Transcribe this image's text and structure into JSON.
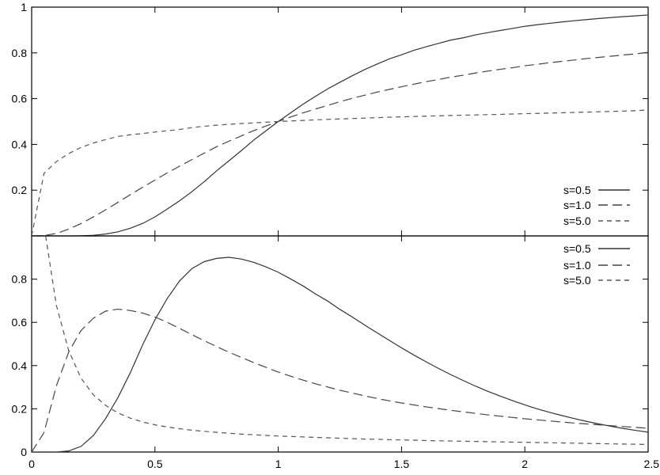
{
  "chart_data": [
    {
      "type": "line",
      "title": "",
      "xlabel": "",
      "ylabel": "",
      "xlim": [
        0,
        2.5
      ],
      "ylim": [
        0,
        1
      ],
      "grid": false,
      "legend_position": "bottom-right",
      "x_ticks": [
        {
          "value": 0,
          "label": "0"
        },
        {
          "value": 0.5,
          "label": "0.5"
        },
        {
          "value": 1,
          "label": "1"
        },
        {
          "value": 1.5,
          "label": "1.5"
        },
        {
          "value": 2,
          "label": "2"
        },
        {
          "value": 2.5,
          "label": "2.5"
        }
      ],
      "y_ticks": [
        {
          "value": 0.2,
          "label": "0.2"
        },
        {
          "value": 0.4,
          "label": "0.4"
        },
        {
          "value": 0.6,
          "label": "0.6"
        },
        {
          "value": 0.8,
          "label": "0.8"
        },
        {
          "value": 1,
          "label": "1"
        }
      ],
      "x": [
        0,
        0.05,
        0.1,
        0.15,
        0.2,
        0.25,
        0.3,
        0.35,
        0.4,
        0.45,
        0.5,
        0.55,
        0.6,
        0.65,
        0.7,
        0.75,
        0.8,
        0.85,
        0.9,
        0.95,
        1.0,
        1.05,
        1.1,
        1.15,
        1.2,
        1.25,
        1.3,
        1.35,
        1.4,
        1.45,
        1.5,
        1.55,
        1.6,
        1.65,
        1.7,
        1.75,
        1.8,
        1.85,
        1.9,
        1.95,
        2.0,
        2.05,
        2.1,
        2.15,
        2.2,
        2.25,
        2.3,
        2.35,
        2.4,
        2.45,
        2.5
      ],
      "series": [
        {
          "name": "s=0.5",
          "style": "solid",
          "color": "#333333",
          "values": [
            0,
            0,
            0,
            0,
            0.0007,
            0.0028,
            0.0082,
            0.0179,
            0.0334,
            0.0546,
            0.0831,
            0.1175,
            0.1537,
            0.1936,
            0.2372,
            0.2844,
            0.3283,
            0.3725,
            0.4185,
            0.4593,
            0.5,
            0.5377,
            0.5754,
            0.6094,
            0.6424,
            0.6715,
            0.7001,
            0.7267,
            0.7505,
            0.7735,
            0.7916,
            0.8114,
            0.8266,
            0.8415,
            0.8559,
            0.8659,
            0.8787,
            0.8887,
            0.898,
            0.9068,
            0.9162,
            0.9229,
            0.9293,
            0.9352,
            0.9406,
            0.9456,
            0.9502,
            0.9545,
            0.9584,
            0.962,
            0.9656
          ]
        },
        {
          "name": "s=1.0",
          "style": "long-dash",
          "color": "#444444",
          "values": [
            0,
            0.0014,
            0.0107,
            0.0294,
            0.0539,
            0.0829,
            0.1141,
            0.1468,
            0.1802,
            0.2128,
            0.2441,
            0.2755,
            0.305,
            0.3335,
            0.3621,
            0.3898,
            0.4139,
            0.437,
            0.46,
            0.4803,
            0.5,
            0.5195,
            0.5377,
            0.5545,
            0.5702,
            0.5868,
            0.6012,
            0.6147,
            0.6283,
            0.6402,
            0.652,
            0.6634,
            0.674,
            0.6838,
            0.6942,
            0.7022,
            0.712,
            0.7204,
            0.7281,
            0.7352,
            0.7438,
            0.7501,
            0.757,
            0.763,
            0.7688,
            0.7753,
            0.7803,
            0.7855,
            0.7909,
            0.7955,
            0.8023
          ]
        },
        {
          "name": "s=5.0",
          "style": "short-dash",
          "color": "#555555",
          "values": [
            0,
            0.273,
            0.3247,
            0.3598,
            0.3867,
            0.4062,
            0.4211,
            0.4346,
            0.442,
            0.4476,
            0.454,
            0.4597,
            0.4652,
            0.4737,
            0.4794,
            0.4839,
            0.4878,
            0.4911,
            0.494,
            0.4971,
            0.5,
            0.5024,
            0.5048,
            0.5071,
            0.5093,
            0.5112,
            0.5131,
            0.5149,
            0.5168,
            0.5188,
            0.5204,
            0.5219,
            0.5234,
            0.5249,
            0.5264,
            0.5276,
            0.5289,
            0.5301,
            0.5314,
            0.5328,
            0.5343,
            0.5355,
            0.5369,
            0.5382,
            0.5397,
            0.5411,
            0.5426,
            0.5441,
            0.5457,
            0.5476,
            0.55
          ]
        }
      ]
    },
    {
      "type": "line",
      "title": "",
      "xlabel": "",
      "ylabel": "",
      "xlim": [
        0,
        2.5
      ],
      "ylim": [
        0,
        1
      ],
      "grid": false,
      "legend_position": "top-right",
      "x_ticks": [
        {
          "value": 0,
          "label": "0"
        },
        {
          "value": 0.5,
          "label": "0.5"
        },
        {
          "value": 1,
          "label": "1"
        },
        {
          "value": 1.5,
          "label": "1.5"
        },
        {
          "value": 2,
          "label": "2"
        },
        {
          "value": 2.5,
          "label": "2.5"
        }
      ],
      "y_ticks": [
        {
          "value": 0,
          "label": "0"
        },
        {
          "value": 0.2,
          "label": "0.2"
        },
        {
          "value": 0.4,
          "label": "0.4"
        },
        {
          "value": 0.6,
          "label": "0.6"
        },
        {
          "value": 0.8,
          "label": "0.8"
        }
      ],
      "x": [
        0,
        0.05,
        0.1,
        0.15,
        0.2,
        0.25,
        0.3,
        0.35,
        0.4,
        0.45,
        0.5,
        0.55,
        0.6,
        0.65,
        0.7,
        0.75,
        0.8,
        0.85,
        0.9,
        0.95,
        1.0,
        1.05,
        1.1,
        1.15,
        1.2,
        1.25,
        1.3,
        1.35,
        1.4,
        1.45,
        1.5,
        1.55,
        1.6,
        1.65,
        1.7,
        1.75,
        1.8,
        1.85,
        1.9,
        1.95,
        2.0,
        2.05,
        2.1,
        2.15,
        2.2,
        2.25,
        2.3,
        2.35,
        2.4,
        2.45,
        2.5
      ],
      "series": [
        {
          "name": "s=0.5",
          "style": "solid",
          "color": "#333333",
          "values": [
            0,
            0,
            0,
            0.005,
            0.026,
            0.076,
            0.155,
            0.252,
            0.367,
            0.496,
            0.612,
            0.711,
            0.792,
            0.849,
            0.881,
            0.896,
            0.901,
            0.893,
            0.878,
            0.857,
            0.832,
            0.801,
            0.769,
            0.732,
            0.699,
            0.66,
            0.625,
            0.588,
            0.552,
            0.517,
            0.482,
            0.449,
            0.417,
            0.387,
            0.358,
            0.331,
            0.305,
            0.281,
            0.259,
            0.238,
            0.218,
            0.2,
            0.184,
            0.169,
            0.155,
            0.142,
            0.13,
            0.119,
            0.109,
            0.1,
            0.092
          ]
        },
        {
          "name": "s=1.0",
          "style": "long-dash",
          "color": "#444444",
          "values": [
            0,
            0.09,
            0.305,
            0.462,
            0.562,
            0.619,
            0.652,
            0.661,
            0.655,
            0.643,
            0.625,
            0.6,
            0.572,
            0.543,
            0.515,
            0.488,
            0.462,
            0.438,
            0.414,
            0.392,
            0.37,
            0.351,
            0.333,
            0.316,
            0.301,
            0.286,
            0.273,
            0.26,
            0.248,
            0.237,
            0.227,
            0.218,
            0.209,
            0.201,
            0.193,
            0.186,
            0.179,
            0.172,
            0.166,
            0.16,
            0.154,
            0.149,
            0.144,
            0.139,
            0.134,
            0.13,
            0.126,
            0.122,
            0.118,
            0.114,
            0.11
          ]
        },
        {
          "name": "s=5.0",
          "style": "short-dash",
          "color": "#555555",
          "values": [
            1.6,
            1.05,
            0.68,
            0.47,
            0.342,
            0.265,
            0.216,
            0.181,
            0.157,
            0.139,
            0.126,
            0.116,
            0.108,
            0.101,
            0.096,
            0.091,
            0.087,
            0.083,
            0.08,
            0.077,
            0.074,
            0.072,
            0.07,
            0.068,
            0.066,
            0.064,
            0.062,
            0.06,
            0.059,
            0.057,
            0.056,
            0.055,
            0.053,
            0.052,
            0.051,
            0.05,
            0.049,
            0.048,
            0.047,
            0.046,
            0.045,
            0.044,
            0.043,
            0.042,
            0.041,
            0.04,
            0.039,
            0.038,
            0.037,
            0.036,
            0.035
          ]
        }
      ]
    }
  ]
}
